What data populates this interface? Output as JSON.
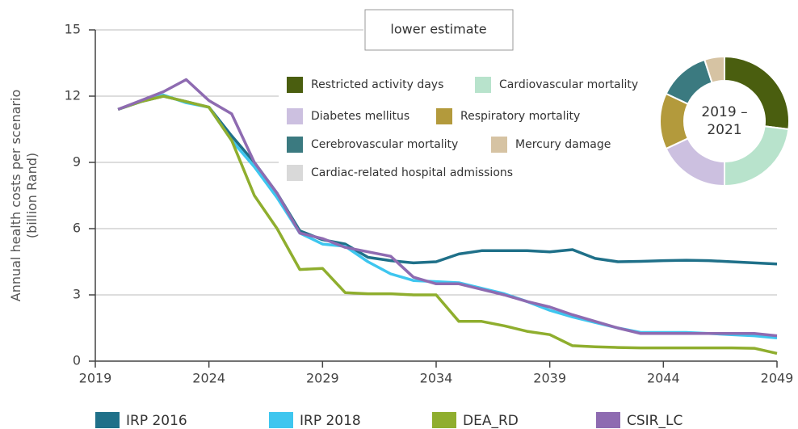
{
  "chart_data": [
    {
      "type": "line",
      "ylabel": [
        "Annual health costs per scenario",
        "(billion Rand)"
      ],
      "annotation": "lower estimate",
      "x": [
        2020,
        2021,
        2022,
        2023,
        2024,
        2025,
        2026,
        2027,
        2028,
        2029,
        2030,
        2031,
        2032,
        2033,
        2034,
        2035,
        2036,
        2037,
        2038,
        2039,
        2040,
        2041,
        2042,
        2043,
        2044,
        2045,
        2046,
        2047,
        2048,
        2049
      ],
      "series": [
        {
          "name": "IRP 2016",
          "color": "#1f7089",
          "values": [
            11.4,
            11.75,
            12.0,
            11.75,
            11.5,
            10.2,
            9.0,
            7.6,
            5.9,
            5.5,
            5.3,
            4.7,
            4.55,
            4.45,
            4.5,
            4.85,
            5.0,
            5.0,
            5.0,
            4.95,
            5.05,
            4.65,
            4.5,
            4.52,
            4.55,
            4.57,
            4.55,
            4.5,
            4.45,
            4.4
          ]
        },
        {
          "name": "IRP 2018",
          "color": "#3ec6ef",
          "values": [
            11.4,
            11.75,
            12.05,
            11.7,
            11.5,
            10.0,
            8.8,
            7.4,
            5.8,
            5.3,
            5.2,
            4.5,
            3.95,
            3.65,
            3.6,
            3.55,
            3.3,
            3.05,
            2.7,
            2.3,
            2.0,
            1.75,
            1.5,
            1.3,
            1.3,
            1.3,
            1.25,
            1.2,
            1.15,
            1.05
          ]
        },
        {
          "name": "DEA_RD",
          "color": "#8fae2e",
          "values": [
            11.4,
            11.75,
            12.0,
            11.75,
            11.5,
            10.0,
            7.5,
            6.0,
            4.15,
            4.2,
            3.1,
            3.05,
            3.05,
            3.0,
            3.0,
            1.8,
            1.8,
            1.6,
            1.35,
            1.2,
            0.7,
            0.65,
            0.62,
            0.6,
            0.6,
            0.6,
            0.6,
            0.6,
            0.58,
            0.35
          ]
        },
        {
          "name": "CSIR_LC",
          "color": "#8e6bb1",
          "values": [
            11.4,
            11.8,
            12.2,
            12.75,
            11.8,
            11.2,
            9.0,
            7.6,
            5.8,
            5.55,
            5.15,
            4.95,
            4.75,
            3.8,
            3.5,
            3.5,
            3.25,
            3.0,
            2.7,
            2.45,
            2.1,
            1.8,
            1.5,
            1.25,
            1.25,
            1.25,
            1.25,
            1.25,
            1.25,
            1.15
          ]
        }
      ],
      "xlim": [
        2019,
        2049
      ],
      "xticks": [
        2019,
        2024,
        2029,
        2034,
        2039,
        2044,
        2049
      ],
      "ylim": [
        0,
        15
      ],
      "yticks": [
        0,
        3,
        6,
        9,
        12,
        15
      ],
      "grid": true,
      "legend": "bottom"
    },
    {
      "type": "pie",
      "center_label": [
        "2019 –",
        "2021"
      ],
      "categories": [
        "Restricted activity days",
        "Cardiovascular mortality",
        "Diabetes mellitus",
        "Respiratory mortality",
        "Cerebrovascular mortality",
        "Mercury damage",
        "Cardiac-related hospital admissions"
      ],
      "values": [
        27,
        23,
        18,
        14,
        13,
        5,
        0
      ],
      "colors": [
        "#4a5e0f",
        "#b8e3cc",
        "#ccc0e0",
        "#b39a3c",
        "#3b7a80",
        "#d6c3a3",
        "#d9d9d9"
      ]
    }
  ]
}
